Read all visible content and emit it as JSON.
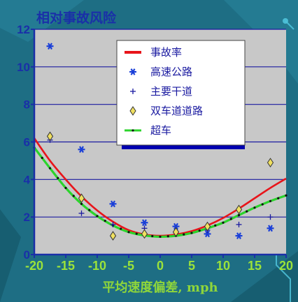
{
  "chart_data": {
    "type": "scatter",
    "title": "相对事故风险",
    "xlabel": "平均速度偏差, mph",
    "ylabel": "",
    "xlim": [
      -20,
      20
    ],
    "ylim": [
      0,
      12
    ],
    "x_ticks": [
      "-20",
      "-15",
      "-10",
      "-5",
      "0",
      "5",
      "10",
      "15",
      "20"
    ],
    "y_ticks": [
      "0",
      "2",
      "4",
      "6",
      "8",
      "10",
      "12"
    ],
    "grid": "horizontal",
    "legend_position": "top-right",
    "series": [
      {
        "name": "事故率",
        "kind": "line",
        "color": "#e8141a",
        "x": [
          -20,
          -17.5,
          -15,
          -12.5,
          -10,
          -7.5,
          -5,
          -2.5,
          0,
          2.5,
          5,
          7.5,
          10,
          12.5,
          15,
          17.5,
          20
        ],
        "y": [
          6.2,
          5.0,
          4.0,
          3.1,
          2.35,
          1.75,
          1.3,
          1.07,
          1.0,
          1.07,
          1.25,
          1.55,
          1.95,
          2.45,
          3.0,
          3.55,
          4.05
        ]
      },
      {
        "name": "高速公路",
        "kind": "scatter",
        "marker": "asterisk",
        "color": "#1a3fd8",
        "x": [
          -17.5,
          -12.5,
          -7.5,
          -2.5,
          2.5,
          7.5,
          12.5,
          17.5
        ],
        "y": [
          11.1,
          5.6,
          2.7,
          1.7,
          1.5,
          1.1,
          1.0,
          1.4
        ]
      },
      {
        "name": "主要干道",
        "kind": "scatter",
        "marker": "plus",
        "color": "#1a1aa0",
        "x": [
          -17.5,
          -12.5,
          -7.5,
          -2.5,
          2.5,
          7.5,
          12.5,
          17.5
        ],
        "y": [
          6.1,
          2.2,
          1.6,
          1.4,
          1.2,
          1.3,
          1.6,
          2.0
        ]
      },
      {
        "name": "双车道道路",
        "kind": "scatter",
        "marker": "diamond",
        "color": "#f0e060",
        "x": [
          -17.5,
          -12.5,
          -7.5,
          -2.5,
          2.5,
          7.5,
          12.5,
          17.5
        ],
        "y": [
          6.3,
          3.0,
          1.0,
          1.1,
          1.2,
          1.5,
          2.4,
          4.9
        ]
      },
      {
        "name": "超车",
        "kind": "line",
        "color": "#2bd42b",
        "x": [
          -20,
          -17.5,
          -15,
          -12.5,
          -10,
          -7.5,
          -5,
          -2.5,
          0,
          2.5,
          5,
          7.5,
          10,
          12.5,
          15,
          17.5,
          20
        ],
        "y": [
          5.7,
          4.6,
          3.55,
          2.7,
          2.05,
          1.55,
          1.2,
          1.02,
          0.95,
          1.0,
          1.15,
          1.4,
          1.7,
          2.1,
          2.5,
          2.85,
          3.15
        ]
      }
    ]
  }
}
